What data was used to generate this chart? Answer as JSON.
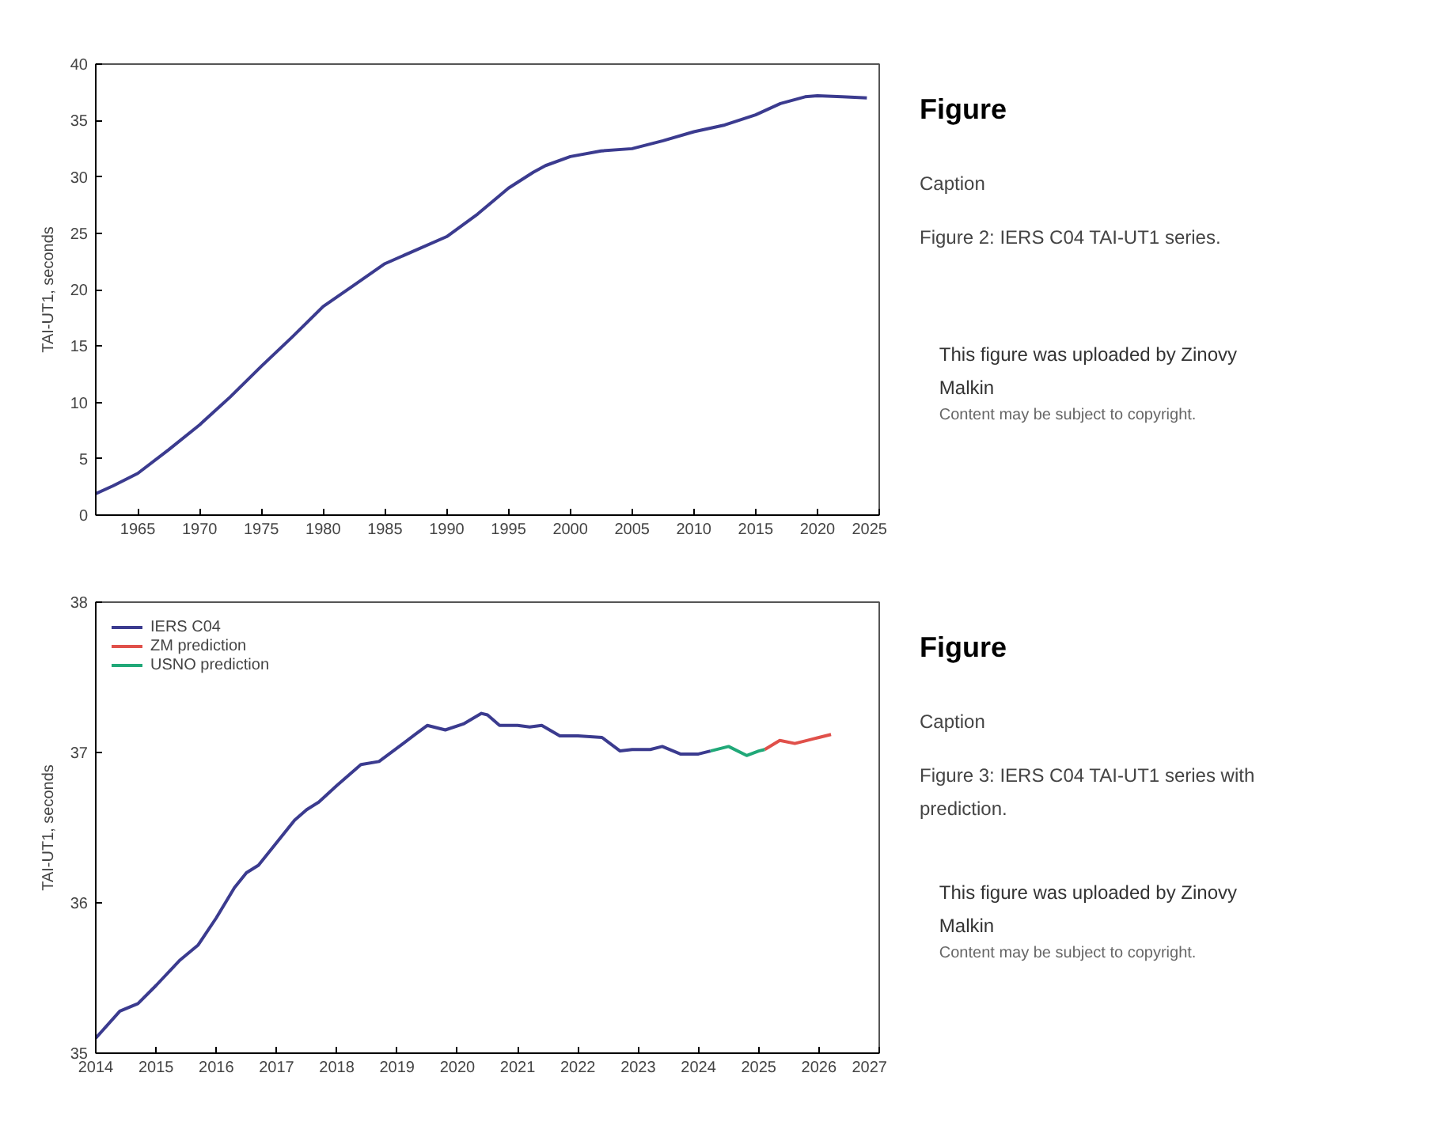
{
  "chart_data": [
    {
      "type": "line",
      "ylabel": "TAI-UT1, seconds",
      "xlim": [
        1961.6,
        2025
      ],
      "ylim": [
        0,
        40
      ],
      "xticks": [
        1965,
        1970,
        1975,
        1980,
        1985,
        1990,
        1995,
        2000,
        2005,
        2010,
        2015,
        2020,
        2025
      ],
      "yticks": [
        0,
        5,
        10,
        15,
        20,
        25,
        30,
        35,
        40
      ],
      "grid": false,
      "legend": false,
      "series": [
        {
          "color": "#3b3b8f",
          "x": [
            1961.6,
            1963,
            1965,
            1967.5,
            1970,
            1972.5,
            1975,
            1977.5,
            1980,
            1982.5,
            1985,
            1987.5,
            1990,
            1992.5,
            1995,
            1997,
            1998,
            2000,
            2002.5,
            2005,
            2007.5,
            2010,
            2012.5,
            2015,
            2017,
            2019,
            2020,
            2022,
            2024
          ],
          "values": [
            1.9,
            2.6,
            3.7,
            5.8,
            8.0,
            10.5,
            13.2,
            15.8,
            18.5,
            20.4,
            22.3,
            23.5,
            24.7,
            26.7,
            29.0,
            30.4,
            31.0,
            31.8,
            32.3,
            32.5,
            33.2,
            34.0,
            34.6,
            35.5,
            36.5,
            37.1,
            37.2,
            37.1,
            37.0
          ]
        }
      ]
    },
    {
      "type": "other",
      "title": "Figure",
      "annotations": [
        "Caption",
        "Figure 2: IERS C04 TAI-UT1 series.",
        "This figure was uploaded by Zinovy Malkin",
        "Content may be subject to copyright."
      ]
    },
    {
      "type": "line",
      "ylabel": "TAI-UT1, seconds",
      "xlim": [
        2014,
        2027
      ],
      "ylim": [
        35,
        38
      ],
      "xticks": [
        2014,
        2015,
        2016,
        2017,
        2018,
        2019,
        2020,
        2021,
        2022,
        2023,
        2024,
        2025,
        2026,
        2027
      ],
      "yticks": [
        35,
        36,
        37,
        38
      ],
      "grid": false,
      "legend": "top left",
      "series": [
        {
          "name": "IERS C04",
          "color": "#3b3b8f",
          "x": [
            2014.0,
            2014.4,
            2014.7,
            2015.0,
            2015.4,
            2015.7,
            2016.0,
            2016.3,
            2016.5,
            2016.7,
            2017.0,
            2017.3,
            2017.5,
            2017.7,
            2018.0,
            2018.4,
            2018.7,
            2019.0,
            2019.3,
            2019.5,
            2019.8,
            2020.1,
            2020.4,
            2020.5,
            2020.7,
            2021.0,
            2021.2,
            2021.4,
            2021.7,
            2022.0,
            2022.4,
            2022.7,
            2022.9,
            2023.2,
            2023.4,
            2023.7,
            2024.0,
            2024.2
          ],
          "values": [
            35.1,
            35.28,
            35.33,
            35.45,
            35.62,
            35.72,
            35.9,
            36.1,
            36.2,
            36.25,
            36.4,
            36.55,
            36.62,
            36.67,
            36.78,
            36.92,
            36.94,
            37.03,
            37.12,
            37.18,
            37.15,
            37.19,
            37.26,
            37.25,
            37.18,
            37.18,
            37.17,
            37.18,
            37.11,
            37.11,
            37.1,
            37.01,
            37.02,
            37.02,
            37.04,
            36.99,
            36.99,
            37.01
          ]
        },
        {
          "name": "ZM prediction",
          "color": "#e0504a",
          "x": [
            2025.1,
            2025.35,
            2025.6,
            2025.9,
            2026.0,
            2026.2
          ],
          "values": [
            37.02,
            37.08,
            37.06,
            37.09,
            37.1,
            37.12
          ]
        },
        {
          "name": "USNO prediction",
          "color": "#20a878",
          "x": [
            2024.2,
            2024.5,
            2024.8,
            2025.0,
            2025.1
          ],
          "values": [
            37.01,
            37.04,
            36.98,
            37.01,
            37.02
          ]
        }
      ]
    },
    {
      "type": "other",
      "title": "Figure",
      "annotations": [
        "Caption",
        "Figure 3: IERS C04 TAI-UT1 series with prediction.",
        "This figure was uploaded by Zinovy Malkin",
        "Content may be subject to copyright."
      ]
    }
  ]
}
